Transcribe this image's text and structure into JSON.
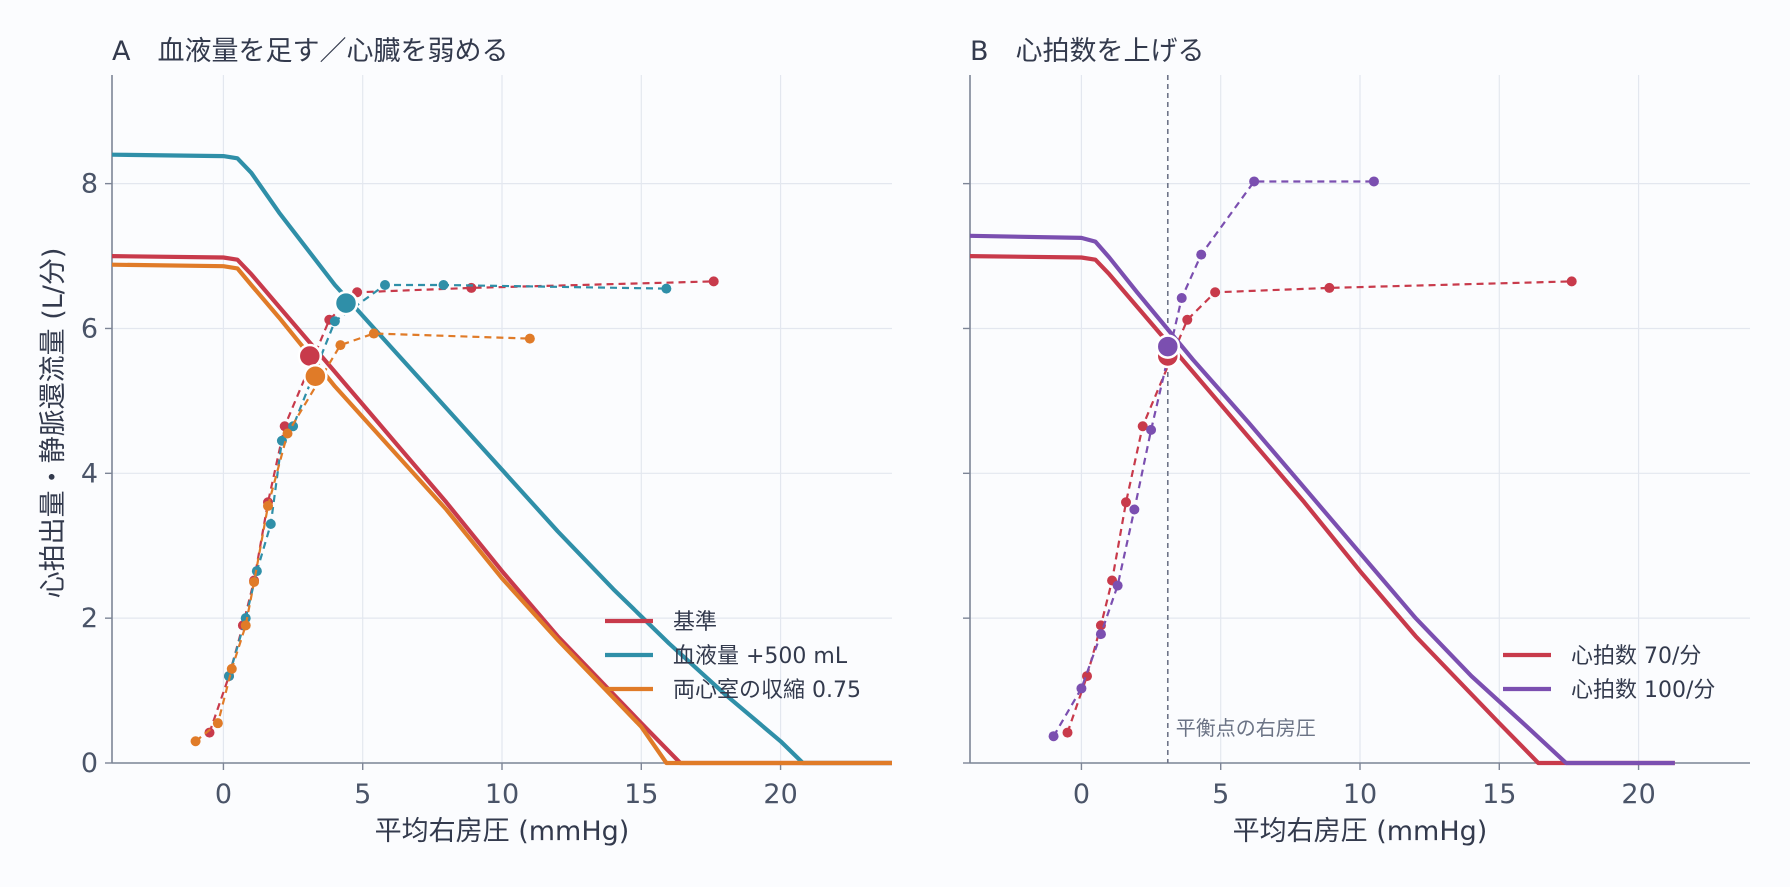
{
  "chart_data": [
    {
      "type": "line",
      "panel": "A",
      "title": "A　血液量を足す／心臓を弱める",
      "xlabel": "平均右房圧 (mmHg)",
      "ylabel": "心拍出量・静脈還流量 (L/分)",
      "xlim": [
        -4,
        24
      ],
      "ylim": [
        0,
        9.5
      ],
      "xticks": [
        0,
        5,
        10,
        15,
        20
      ],
      "yticks": [
        0,
        2,
        4,
        6,
        8
      ],
      "grid": true,
      "legend_position": "bottom-right",
      "series": [
        {
          "name": "基準",
          "color": "#c83a4b",
          "venous_return": [
            [
              -4,
              7.0
            ],
            [
              0,
              6.98
            ],
            [
              0.5,
              6.95
            ],
            [
              1,
              6.75
            ],
            [
              2,
              6.3
            ],
            [
              4,
              5.4
            ],
            [
              6,
              4.5
            ],
            [
              8,
              3.6
            ],
            [
              10,
              2.65
            ],
            [
              12,
              1.75
            ],
            [
              14,
              0.95
            ],
            [
              15,
              0.55
            ],
            [
              16.4,
              0
            ],
            [
              24,
              0
            ]
          ],
          "cardiac_output": [
            [
              -0.5,
              0.42
            ],
            [
              0.2,
              1.2
            ],
            [
              0.7,
              1.9
            ],
            [
              1.1,
              2.52
            ],
            [
              1.6,
              3.6
            ],
            [
              2.2,
              4.65
            ],
            [
              3.8,
              6.12
            ],
            [
              4.8,
              6.5
            ],
            [
              8.9,
              6.56
            ],
            [
              17.6,
              6.65
            ]
          ],
          "equilibrium": [
            3.1,
            5.62
          ]
        },
        {
          "name": "血液量 +500 mL",
          "color": "#2f8fa8",
          "venous_return": [
            [
              -4,
              8.4
            ],
            [
              0,
              8.38
            ],
            [
              0.5,
              8.35
            ],
            [
              1,
              8.15
            ],
            [
              2,
              7.6
            ],
            [
              4,
              6.6
            ],
            [
              6,
              5.75
            ],
            [
              8,
              4.9
            ],
            [
              10,
              4.05
            ],
            [
              12,
              3.2
            ],
            [
              14,
              2.4
            ],
            [
              16,
              1.65
            ],
            [
              18,
              0.95
            ],
            [
              20,
              0.3
            ],
            [
              20.8,
              0
            ],
            [
              24,
              0
            ]
          ],
          "cardiac_output": [
            [
              0.2,
              1.2
            ],
            [
              0.8,
              2.0
            ],
            [
              1.2,
              2.65
            ],
            [
              1.7,
              3.3
            ],
            [
              2.1,
              4.45
            ],
            [
              2.5,
              4.65
            ],
            [
              4.0,
              6.1
            ],
            [
              5.8,
              6.6
            ],
            [
              7.9,
              6.6
            ],
            [
              15.9,
              6.55
            ]
          ],
          "equilibrium": [
            4.4,
            6.35
          ]
        },
        {
          "name": "両心室の収縮 0.75",
          "color": "#e07b28",
          "venous_return": [
            [
              -4,
              6.88
            ],
            [
              0,
              6.86
            ],
            [
              0.5,
              6.83
            ],
            [
              1,
              6.6
            ],
            [
              2,
              6.15
            ],
            [
              4,
              5.2
            ],
            [
              6,
              4.35
            ],
            [
              8,
              3.5
            ],
            [
              10,
              2.55
            ],
            [
              12,
              1.7
            ],
            [
              14,
              0.9
            ],
            [
              15,
              0.5
            ],
            [
              15.9,
              0
            ],
            [
              24,
              0
            ]
          ],
          "cardiac_output": [
            [
              -1.0,
              0.3
            ],
            [
              -0.2,
              0.55
            ],
            [
              0.3,
              1.3
            ],
            [
              0.8,
              1.9
            ],
            [
              1.1,
              2.5
            ],
            [
              1.6,
              3.55
            ],
            [
              2.3,
              4.55
            ],
            [
              4.2,
              5.77
            ],
            [
              5.4,
              5.93
            ],
            [
              11.0,
              5.86
            ]
          ],
          "equilibrium": [
            3.3,
            5.34
          ]
        }
      ]
    },
    {
      "type": "line",
      "panel": "B",
      "title": "B　心拍数を上げる",
      "xlabel": "平均右房圧 (mmHg)",
      "xlim": [
        -4,
        24
      ],
      "ylim": [
        0,
        9.5
      ],
      "xticks": [
        0,
        5,
        10,
        15,
        20
      ],
      "grid": true,
      "legend_position": "bottom-right",
      "annotation": {
        "text": "平衡点の右房圧",
        "x": 3.1
      },
      "series": [
        {
          "name": "心拍数 70/分",
          "color": "#c83a4b",
          "venous_return": [
            [
              -4,
              7.0
            ],
            [
              0,
              6.98
            ],
            [
              0.5,
              6.95
            ],
            [
              1,
              6.75
            ],
            [
              2,
              6.3
            ],
            [
              4,
              5.4
            ],
            [
              6,
              4.5
            ],
            [
              8,
              3.6
            ],
            [
              10,
              2.65
            ],
            [
              12,
              1.75
            ],
            [
              14,
              0.95
            ],
            [
              15,
              0.55
            ],
            [
              16.4,
              0
            ],
            [
              21.3,
              0
            ]
          ],
          "cardiac_output": [
            [
              -0.5,
              0.42
            ],
            [
              0.2,
              1.2
            ],
            [
              0.7,
              1.9
            ],
            [
              1.1,
              2.52
            ],
            [
              1.6,
              3.6
            ],
            [
              2.2,
              4.65
            ],
            [
              3.8,
              6.12
            ],
            [
              4.8,
              6.5
            ],
            [
              8.9,
              6.56
            ],
            [
              17.6,
              6.65
            ]
          ],
          "equilibrium": [
            3.1,
            5.62
          ]
        },
        {
          "name": "心拍数 100/分",
          "color": "#7b4fb0",
          "venous_return": [
            [
              -4,
              7.28
            ],
            [
              0,
              7.25
            ],
            [
              0.5,
              7.2
            ],
            [
              1,
              6.98
            ],
            [
              2,
              6.5
            ],
            [
              4,
              5.57
            ],
            [
              6,
              4.7
            ],
            [
              8,
              3.8
            ],
            [
              10,
              2.9
            ],
            [
              12,
              2.0
            ],
            [
              14,
              1.2
            ],
            [
              16,
              0.5
            ],
            [
              17.4,
              0
            ],
            [
              21.3,
              0
            ]
          ],
          "cardiac_output": [
            [
              -1.0,
              0.37
            ],
            [
              0.0,
              1.03
            ],
            [
              0.7,
              1.78
            ],
            [
              1.3,
              2.45
            ],
            [
              1.9,
              3.5
            ],
            [
              2.5,
              4.6
            ],
            [
              3.6,
              6.42
            ],
            [
              4.3,
              7.02
            ],
            [
              6.2,
              8.03
            ],
            [
              10.5,
              8.03
            ]
          ],
          "equilibrium": [
            3.1,
            5.75
          ]
        }
      ]
    }
  ]
}
